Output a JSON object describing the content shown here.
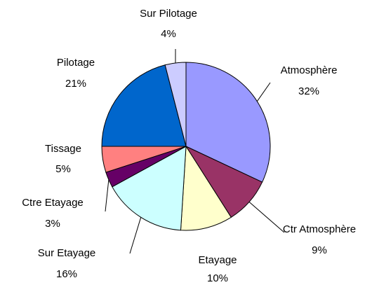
{
  "chart_data": {
    "type": "pie",
    "categories": [
      "Atmosphère",
      "Ctr Atmosphère",
      "Etayage",
      "Sur Etayage",
      "Ctre Etayage",
      "Tissage",
      "Pilotage",
      "Sur Pilotage"
    ],
    "values": [
      32,
      9,
      10,
      16,
      3,
      5,
      21,
      4
    ],
    "value_labels": [
      "32%",
      "9%",
      "10%",
      "16%",
      "3%",
      "5%",
      "21%",
      "4%"
    ],
    "colors": [
      "#9999ff",
      "#993366",
      "#ffffcc",
      "#ccffff",
      "#660066",
      "#ff8080",
      "#0066cc",
      "#ccccff"
    ]
  }
}
